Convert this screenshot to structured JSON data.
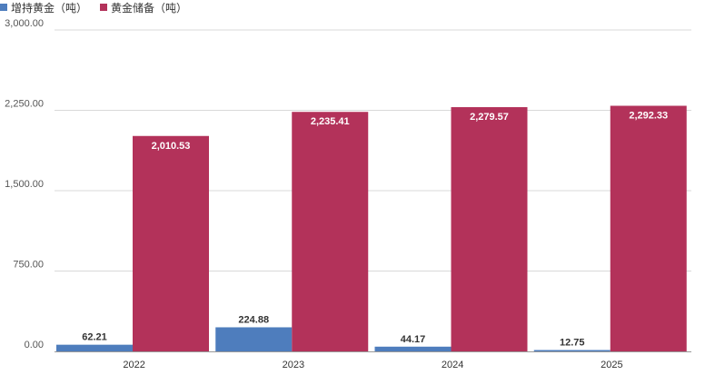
{
  "chart_data": {
    "type": "bar",
    "categories": [
      "2022",
      "2023",
      "2024",
      "2025"
    ],
    "series": [
      {
        "name": "增持黄金（吨）",
        "color": "#4e7dbd",
        "values": [
          62.21,
          224.88,
          44.17,
          12.75
        ],
        "labels": [
          "62.21",
          "224.88",
          "44.17",
          "12.75"
        ]
      },
      {
        "name": "黄金储备（吨）",
        "color": "#b3325a",
        "values": [
          2010.53,
          2235.41,
          2279.57,
          2292.33
        ],
        "labels": [
          "2,010.53",
          "2,235.41",
          "2,279.57",
          "2,292.33"
        ]
      }
    ],
    "yticks": [
      {
        "value": 0,
        "label": "0.00"
      },
      {
        "value": 750,
        "label": "750.00"
      },
      {
        "value": 1500,
        "label": "1,500.00"
      },
      {
        "value": 2250,
        "label": "2,250.00"
      },
      {
        "value": 3000,
        "label": "3,000.00"
      }
    ],
    "ylim": [
      0,
      3000
    ],
    "grid": true,
    "legend_position": "top-left"
  }
}
